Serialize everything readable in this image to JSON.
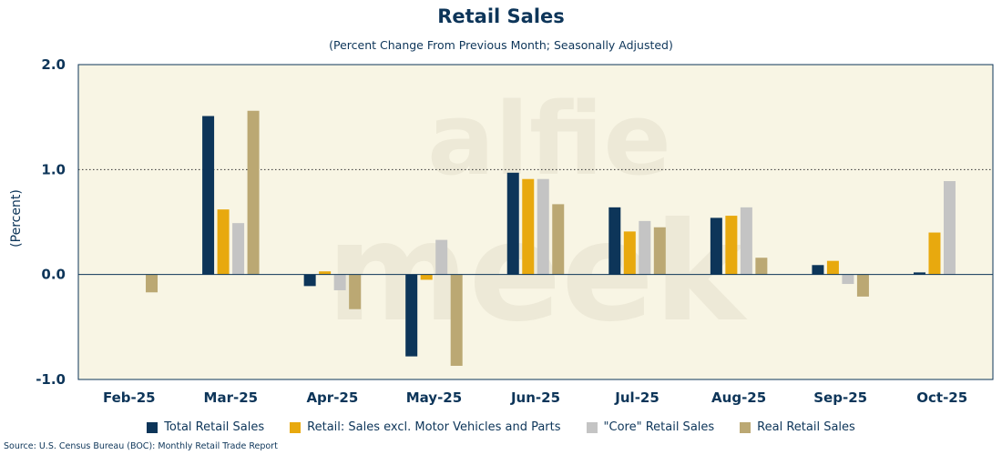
{
  "chart_data": {
    "type": "bar",
    "title": "Retail Sales",
    "subtitle": "(Percent Change From Previous Month; Seasonally Adjusted)",
    "xlabel": "",
    "ylabel": "(Percent)",
    "ylim": [
      -1.0,
      2.0
    ],
    "yticks": [
      2.0,
      1.0,
      0.0,
      -1.0
    ],
    "ytick_labels": [
      "2.0",
      "1.0",
      "0.0",
      "-1.0"
    ],
    "categories": [
      "Feb-25",
      "Mar-25",
      "Apr-25",
      "May-25",
      "Jun-25",
      "Jul-25",
      "Aug-25",
      "Sep-25",
      "Oct-25"
    ],
    "series": [
      {
        "name": "Total Retail Sales",
        "color": "#0d3559",
        "values": [
          0.0,
          1.51,
          -0.11,
          -0.78,
          0.97,
          0.64,
          0.54,
          0.09,
          0.02
        ]
      },
      {
        "name": "Retail: Sales excl. Motor Vehicles and Parts",
        "color": "#e8a90e",
        "values": [
          0.0,
          0.62,
          0.03,
          -0.05,
          0.91,
          0.41,
          0.56,
          0.13,
          0.4
        ]
      },
      {
        "name": "\"Core\" Retail Sales",
        "color": "#c4c4c4",
        "values": [
          0.0,
          0.49,
          -0.15,
          0.33,
          0.91,
          0.51,
          0.64,
          -0.09,
          0.89
        ]
      },
      {
        "name": "Real Retail Sales",
        "color": "#bba873",
        "values": [
          -0.17,
          1.56,
          -0.33,
          -0.87,
          0.67,
          0.45,
          0.16,
          -0.21,
          null
        ]
      }
    ],
    "reference_line": 1.0,
    "legend_position": "bottom",
    "plot_background": "#f8f5e4",
    "watermark": "alfie meek",
    "source": "Source: U.S. Census Bureau (BOC): Monthly Retail Trade Report"
  }
}
